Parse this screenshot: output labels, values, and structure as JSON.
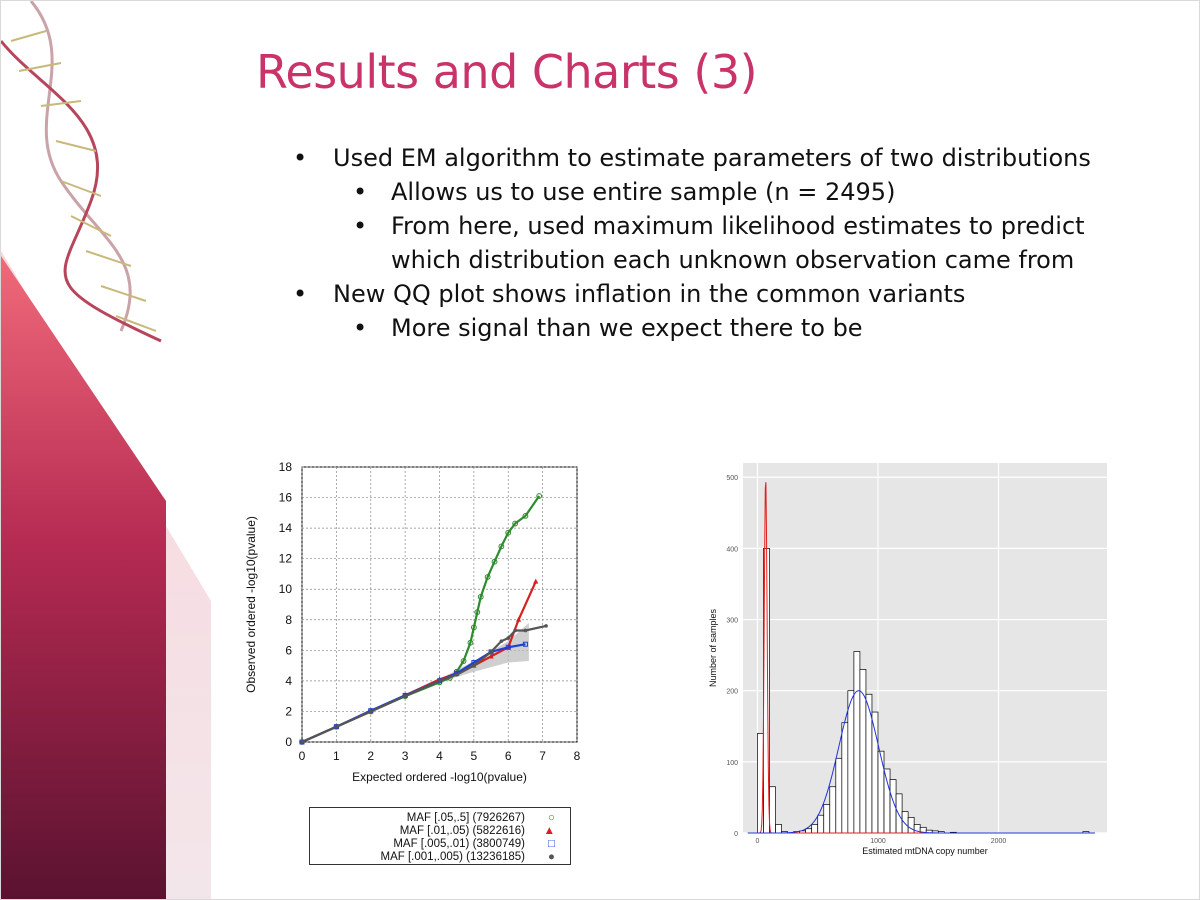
{
  "slide": {
    "title": "Results and Charts (3)",
    "bullets": [
      {
        "level": 1,
        "text": "Used EM algorithm to estimate parameters of two distributions"
      },
      {
        "level": 2,
        "text": "Allows us to use entire sample (n = 2495)"
      },
      {
        "level": 2,
        "text": "From here, used maximum likelihood estimates to predict which distribution each unknown observation came from"
      },
      {
        "level": 1,
        "text": "New QQ plot shows inflation in the common variants"
      },
      {
        "level": 2,
        "text": "More signal than we expect there to be"
      }
    ]
  },
  "chart_data": [
    {
      "type": "scatter",
      "title": "",
      "xlabel": "Expected ordered -log10(pvalue)",
      "ylabel": "Observed ordered -log10(pvalue)",
      "xlim": [
        0,
        8
      ],
      "ylim": [
        0,
        18
      ],
      "xticks": [
        0,
        1,
        2,
        3,
        4,
        5,
        6,
        7,
        8
      ],
      "yticks": [
        0,
        2,
        4,
        6,
        8,
        10,
        12,
        14,
        16,
        18
      ],
      "grid": true,
      "series": [
        {
          "name": "MAF [.05,.5] (7926267)",
          "color": "#2e8b2e",
          "marker": "circle",
          "x": [
            0,
            1,
            2,
            3,
            4,
            4.3,
            4.5,
            4.7,
            4.9,
            5.0,
            5.1,
            5.2,
            5.4,
            5.6,
            5.8,
            6.0,
            6.2,
            6.5,
            6.9
          ],
          "y": [
            0,
            1.0,
            2.0,
            3.0,
            3.9,
            4.2,
            4.6,
            5.3,
            6.5,
            7.5,
            8.5,
            9.5,
            10.8,
            11.8,
            12.8,
            13.7,
            14.3,
            14.8,
            16.1
          ]
        },
        {
          "name": "MAF [.01,.05) (5822616)",
          "color": "#d62020",
          "marker": "triangle",
          "x": [
            0,
            1,
            2,
            3,
            4,
            4.5,
            5.0,
            5.5,
            6.0,
            6.3,
            6.8
          ],
          "y": [
            0,
            1.0,
            2.0,
            3.05,
            4.1,
            4.5,
            5.0,
            5.6,
            6.2,
            8.0,
            10.5
          ]
        },
        {
          "name": "MAF [.005,.01) (3800749)",
          "color": "#1f3fd6",
          "marker": "square",
          "x": [
            0,
            1,
            2,
            3,
            4,
            4.5,
            5.0,
            5.5,
            6.0,
            6.5
          ],
          "y": [
            0,
            1.0,
            2.05,
            3.05,
            4.0,
            4.5,
            5.2,
            5.9,
            6.2,
            6.4
          ]
        },
        {
          "name": "MAF [.001,.005) (13236185)",
          "color": "#555555",
          "marker": "dot",
          "x": [
            0,
            1,
            2,
            3,
            4,
            4.5,
            5.0,
            5.5,
            5.8,
            6.0,
            6.2,
            6.5,
            7.1
          ],
          "y": [
            0,
            1.0,
            2.0,
            3.0,
            4.0,
            4.4,
            5.0,
            5.9,
            6.6,
            6.8,
            7.3,
            7.3,
            7.6
          ]
        }
      ],
      "legend": {
        "position": "below",
        "entries": [
          "MAF [.05,.5] (7926267)",
          "MAF [.01,.05) (5822616)",
          "MAF [.005,.01) (3800749)",
          "MAF [.001,.005) (13236185)"
        ]
      }
    },
    {
      "type": "bar",
      "subtype": "histogram",
      "title": "",
      "xlabel": "Estimated mtDNA copy number",
      "ylabel": "Number of samples",
      "xlim": [
        -120,
        2900
      ],
      "ylim": [
        0,
        520
      ],
      "xticks": [
        0,
        1000,
        2000
      ],
      "yticks": [
        0,
        100,
        200,
        300,
        400,
        500
      ],
      "grid": true,
      "bin_width": 50,
      "bins": [
        {
          "x0": 0,
          "count": 140
        },
        {
          "x0": 50,
          "count": 400
        },
        {
          "x0": 100,
          "count": 65
        },
        {
          "x0": 150,
          "count": 12
        },
        {
          "x0": 200,
          "count": 2
        },
        {
          "x0": 300,
          "count": 2
        },
        {
          "x0": 350,
          "count": 3
        },
        {
          "x0": 400,
          "count": 6
        },
        {
          "x0": 450,
          "count": 12
        },
        {
          "x0": 500,
          "count": 25
        },
        {
          "x0": 550,
          "count": 40
        },
        {
          "x0": 600,
          "count": 65
        },
        {
          "x0": 650,
          "count": 105
        },
        {
          "x0": 700,
          "count": 155
        },
        {
          "x0": 750,
          "count": 200
        },
        {
          "x0": 800,
          "count": 255
        },
        {
          "x0": 850,
          "count": 230
        },
        {
          "x0": 900,
          "count": 195
        },
        {
          "x0": 950,
          "count": 170
        },
        {
          "x0": 1000,
          "count": 115
        },
        {
          "x0": 1050,
          "count": 90
        },
        {
          "x0": 1100,
          "count": 75
        },
        {
          "x0": 1150,
          "count": 55
        },
        {
          "x0": 1200,
          "count": 30
        },
        {
          "x0": 1250,
          "count": 22
        },
        {
          "x0": 1300,
          "count": 12
        },
        {
          "x0": 1350,
          "count": 8
        },
        {
          "x0": 1400,
          "count": 4
        },
        {
          "x0": 1450,
          "count": 3
        },
        {
          "x0": 1500,
          "count": 2
        },
        {
          "x0": 1600,
          "count": 1
        },
        {
          "x0": 2700,
          "count": 2
        }
      ],
      "fits": [
        {
          "color": "#e0201c",
          "mean": 68,
          "sd": 12,
          "peak": 500
        },
        {
          "color": "#2233dd",
          "mean": 840,
          "sd": 165,
          "peak": 200
        }
      ]
    }
  ]
}
